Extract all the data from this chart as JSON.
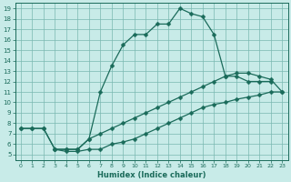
{
  "xlabel": "Humidex (Indice chaleur)",
  "bg_color": "#c8ebe8",
  "grid_color": "#7ab8b0",
  "line_color": "#1a6b5a",
  "xlim": [
    -0.5,
    23.5
  ],
  "ylim": [
    4.5,
    19.5
  ],
  "xticks": [
    0,
    1,
    2,
    3,
    4,
    5,
    6,
    7,
    8,
    9,
    10,
    11,
    12,
    13,
    14,
    15,
    16,
    17,
    18,
    19,
    20,
    21,
    22,
    23
  ],
  "yticks": [
    5,
    6,
    7,
    8,
    9,
    10,
    11,
    12,
    13,
    14,
    15,
    16,
    17,
    18,
    19
  ],
  "line_peak_x": [
    0,
    1,
    2,
    3,
    4,
    5,
    6,
    7,
    8,
    9,
    10,
    11,
    12,
    13,
    14,
    15,
    16,
    17,
    18,
    19,
    20,
    21,
    22
  ],
  "line_peak_y": [
    7.5,
    7.5,
    7.5,
    5.5,
    5.5,
    5.5,
    6.5,
    11.0,
    13.5,
    15.5,
    16.5,
    16.5,
    17.5,
    17.5,
    19.0,
    18.5,
    18.2,
    16.5,
    12.5,
    12.5,
    12.0,
    12.0,
    12.0
  ],
  "line_low_x": [
    3,
    4,
    5,
    6,
    7,
    8,
    9,
    10,
    11,
    12,
    13,
    14,
    15,
    16,
    17,
    18,
    19,
    20,
    21,
    22,
    23
  ],
  "line_low_y": [
    5.5,
    5.3,
    5.3,
    5.5,
    5.5,
    6.0,
    6.2,
    6.5,
    7.0,
    7.5,
    8.0,
    8.5,
    9.0,
    9.5,
    9.8,
    10.0,
    10.3,
    10.5,
    10.7,
    11.0,
    11.0
  ],
  "line_mid_x": [
    0,
    1,
    2,
    3,
    4,
    5,
    6,
    7,
    8,
    9,
    10,
    11,
    12,
    13,
    14,
    15,
    16,
    17,
    18,
    19,
    20,
    21,
    22,
    23
  ],
  "line_mid_y": [
    7.5,
    7.5,
    7.5,
    5.5,
    5.5,
    5.5,
    6.5,
    7.0,
    7.5,
    8.0,
    8.5,
    9.0,
    9.5,
    10.0,
    10.5,
    11.0,
    11.5,
    12.0,
    12.5,
    12.8,
    12.8,
    12.5,
    12.2,
    11.0
  ]
}
